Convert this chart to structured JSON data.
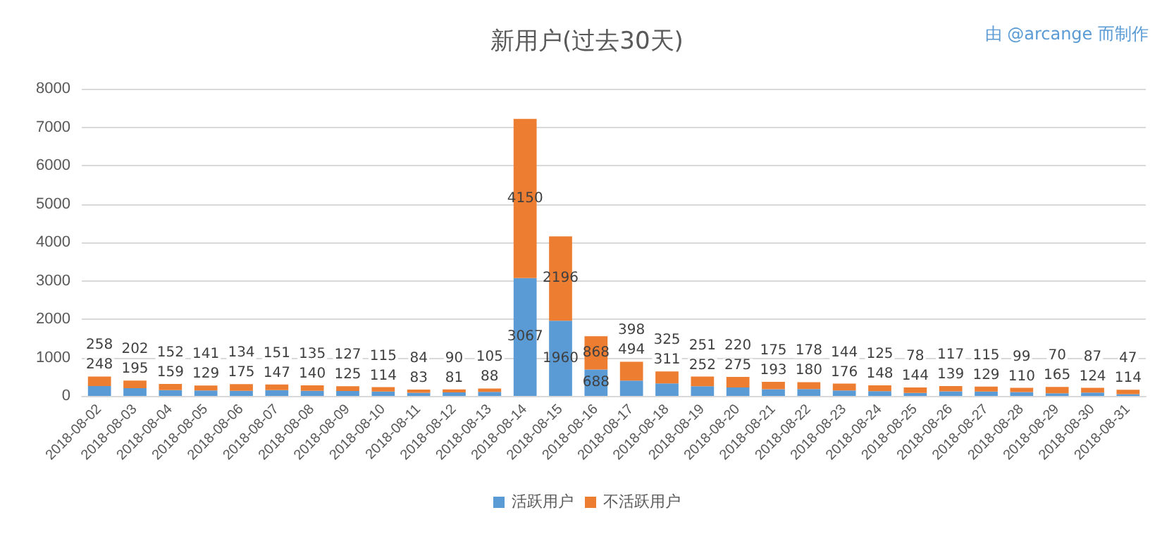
{
  "chart_data": {
    "type": "bar",
    "title": "新用户(过去30天)",
    "annotations": [
      "由 @arcange 而制作"
    ],
    "categories": [
      "2018-08-02",
      "2018-08-03",
      "2018-08-04",
      "2018-08-05",
      "2018-08-06",
      "2018-08-07",
      "2018-08-08",
      "2018-08-09",
      "2018-08-10",
      "2018-08-11",
      "2018-08-12",
      "2018-08-13",
      "2018-08-14",
      "2018-08-15",
      "2018-08-16",
      "2018-08-17",
      "2018-08-18",
      "2018-08-19",
      "2018-08-20",
      "2018-08-21",
      "2018-08-22",
      "2018-08-23",
      "2018-08-24",
      "2018-08-25",
      "2018-08-26",
      "2018-08-27",
      "2018-08-28",
      "2018-08-29",
      "2018-08-30",
      "2018-08-31"
    ],
    "series": [
      {
        "name": "活跃用户",
        "color": "#5b9bd5",
        "values": [
          258,
          202,
          152,
          141,
          134,
          151,
          135,
          127,
          115,
          84,
          90,
          105,
          3067,
          1960,
          688,
          398,
          325,
          251,
          220,
          175,
          178,
          144,
          125,
          78,
          117,
          115,
          99,
          70,
          87,
          47
        ]
      },
      {
        "name": "不活跃用户",
        "color": "#ed7d31",
        "values": [
          248,
          195,
          159,
          129,
          175,
          147,
          140,
          125,
          114,
          83,
          81,
          88,
          4150,
          2196,
          868,
          494,
          311,
          252,
          275,
          193,
          180,
          176,
          148,
          144,
          139,
          129,
          110,
          165,
          124,
          114
        ]
      }
    ],
    "stacked": true,
    "data_labels": true,
    "ylim": [
      0,
      8000
    ],
    "yticks": [
      0,
      1000,
      2000,
      3000,
      4000,
      5000,
      6000,
      7000,
      8000
    ],
    "grid": "y",
    "legend": "bottom"
  }
}
